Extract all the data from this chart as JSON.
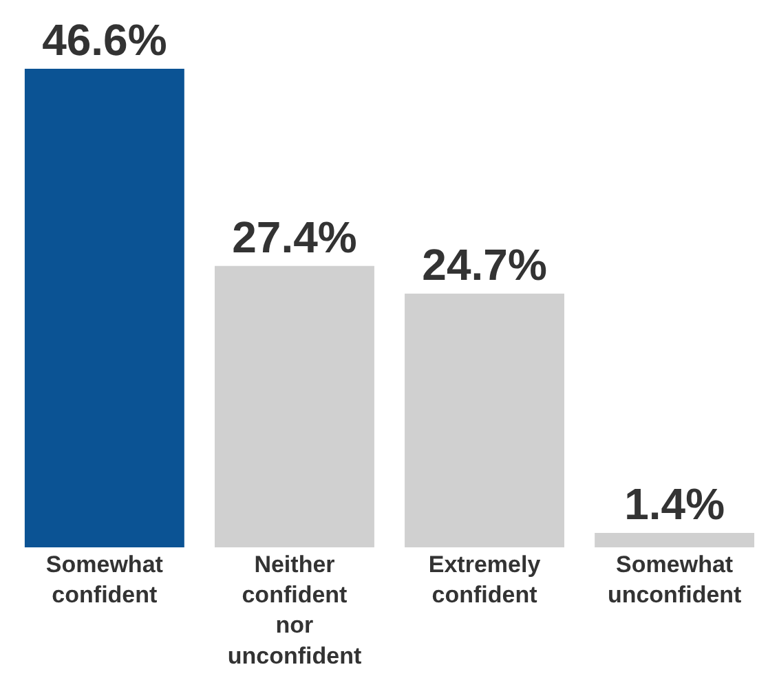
{
  "chart_data": {
    "type": "bar",
    "categories": [
      "Somewhat confident",
      "Neither confident nor unconfident",
      "Extremely confident",
      "Somewhat unconfident"
    ],
    "values": [
      46.6,
      27.4,
      24.7,
      1.4
    ],
    "colors": [
      "#0b5394",
      "#d0d0d0",
      "#d0d0d0",
      "#d0d0d0"
    ],
    "value_labels": [
      "46.6%",
      "27.4%",
      "24.7%",
      "1.4%"
    ]
  }
}
